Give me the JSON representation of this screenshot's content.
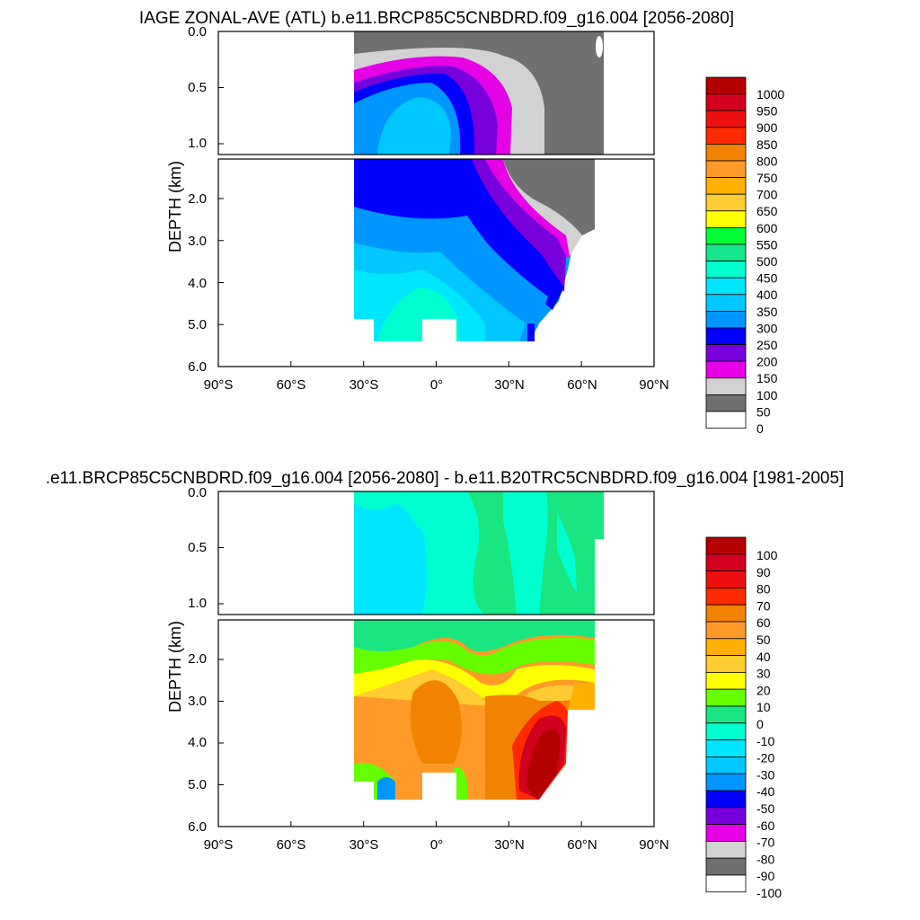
{
  "chart_data": [
    {
      "type": "contour",
      "title": "IAGE ZONAL-AVE (ATL) b.e11.BRCP85C5CNBDRD.f09_g16.004 [2056-2080]",
      "ylabel": "DEPTH (km)",
      "x_tick_labels": [
        "90°S",
        "60°S",
        "30°S",
        "0°",
        "30°N",
        "60°N",
        "90°N"
      ],
      "x_tick_values": [
        -90,
        -60,
        -30,
        0,
        30,
        60,
        90
      ],
      "upper_panel_y_ticks": [
        "0.0",
        "0.5",
        "1.0"
      ],
      "upper_panel_y_values": [
        0,
        0.5,
        1.0
      ],
      "lower_panel_y_ticks": [
        "2.0",
        "3.0",
        "4.0",
        "5.0",
        "6.0"
      ],
      "lower_panel_y_values": [
        2,
        3,
        4,
        5,
        6
      ],
      "xlim": [
        -90,
        90
      ],
      "ylim": [
        0,
        6
      ],
      "colorbar": {
        "labels": [
          "1000",
          "950",
          "900",
          "850",
          "800",
          "750",
          "700",
          "650",
          "600",
          "550",
          "500",
          "450",
          "400",
          "350",
          "300",
          "250",
          "200",
          "150",
          "100",
          "50",
          "0"
        ],
        "colors": [
          "#b40000",
          "#d2001e",
          "#ee1010",
          "#ff2a00",
          "#f28300",
          "#ff9a28",
          "#ffb000",
          "#ffcc33",
          "#ffff00",
          "#00ff33",
          "#14e68c",
          "#00ffd0",
          "#00e6ff",
          "#00c8ff",
          "#0096ff",
          "#0000ff",
          "#7800dc",
          "#e600e6",
          "#d2d2d2",
          "#707070",
          "#ffffff"
        ]
      },
      "sample_points": [
        {
          "lat": -30,
          "depth": 0.2,
          "value": 75
        },
        {
          "lat": 0,
          "depth": 0.9,
          "value": 350
        },
        {
          "lat": 20,
          "depth": 2.0,
          "value": 200
        },
        {
          "lat": 45,
          "depth": 1.0,
          "value": 40
        },
        {
          "lat": 55,
          "depth": 3.0,
          "value": 110
        },
        {
          "lat": 0,
          "depth": 5.0,
          "value": 500
        }
      ]
    },
    {
      "type": "contour",
      "title": ".e11.BRCP85C5CNBDRD.f09_g16.004 [2056-2080] - b.e11.B20TRC5CNBDRD.f09_g16.004 [1981-2005]",
      "ylabel": "DEPTH (km)",
      "x_tick_labels": [
        "90°S",
        "60°S",
        "30°S",
        "0°",
        "30°N",
        "60°N",
        "90°N"
      ],
      "x_tick_values": [
        -90,
        -60,
        -30,
        0,
        30,
        60,
        90
      ],
      "upper_panel_y_ticks": [
        "0.0",
        "0.5",
        "1.0"
      ],
      "upper_panel_y_values": [
        0,
        0.5,
        1.0
      ],
      "lower_panel_y_ticks": [
        "2.0",
        "3.0",
        "4.0",
        "5.0",
        "6.0"
      ],
      "lower_panel_y_values": [
        2,
        3,
        4,
        5,
        6
      ],
      "xlim": [
        -90,
        90
      ],
      "ylim": [
        0,
        6
      ],
      "colorbar": {
        "labels": [
          "100",
          "90",
          "80",
          "70",
          "60",
          "50",
          "40",
          "30",
          "20",
          "10",
          "0",
          "-10",
          "-20",
          "-30",
          "-40",
          "-50",
          "-60",
          "-70",
          "-80",
          "-90",
          "-100"
        ],
        "colors": [
          "#b40000",
          "#d2001e",
          "#ee1010",
          "#ff2a00",
          "#f28300",
          "#ff9a28",
          "#ffb000",
          "#ffcc33",
          "#ffff00",
          "#66ff00",
          "#19e680",
          "#00ffd0",
          "#00e6ff",
          "#00c8ff",
          "#0096ff",
          "#0000ff",
          "#7800dc",
          "#e600e6",
          "#d2d2d2",
          "#707070",
          "#ffffff"
        ]
      },
      "sample_points": [
        {
          "lat": -10,
          "depth": 0.5,
          "value": -15
        },
        {
          "lat": 20,
          "depth": 0.5,
          "value": 5
        },
        {
          "lat": -20,
          "depth": 1.8,
          "value": 10
        },
        {
          "lat": 0,
          "depth": 3.5,
          "value": 55
        },
        {
          "lat": 40,
          "depth": 4.2,
          "value": 95
        },
        {
          "lat": 50,
          "depth": 3.2,
          "value": 85
        }
      ]
    }
  ]
}
